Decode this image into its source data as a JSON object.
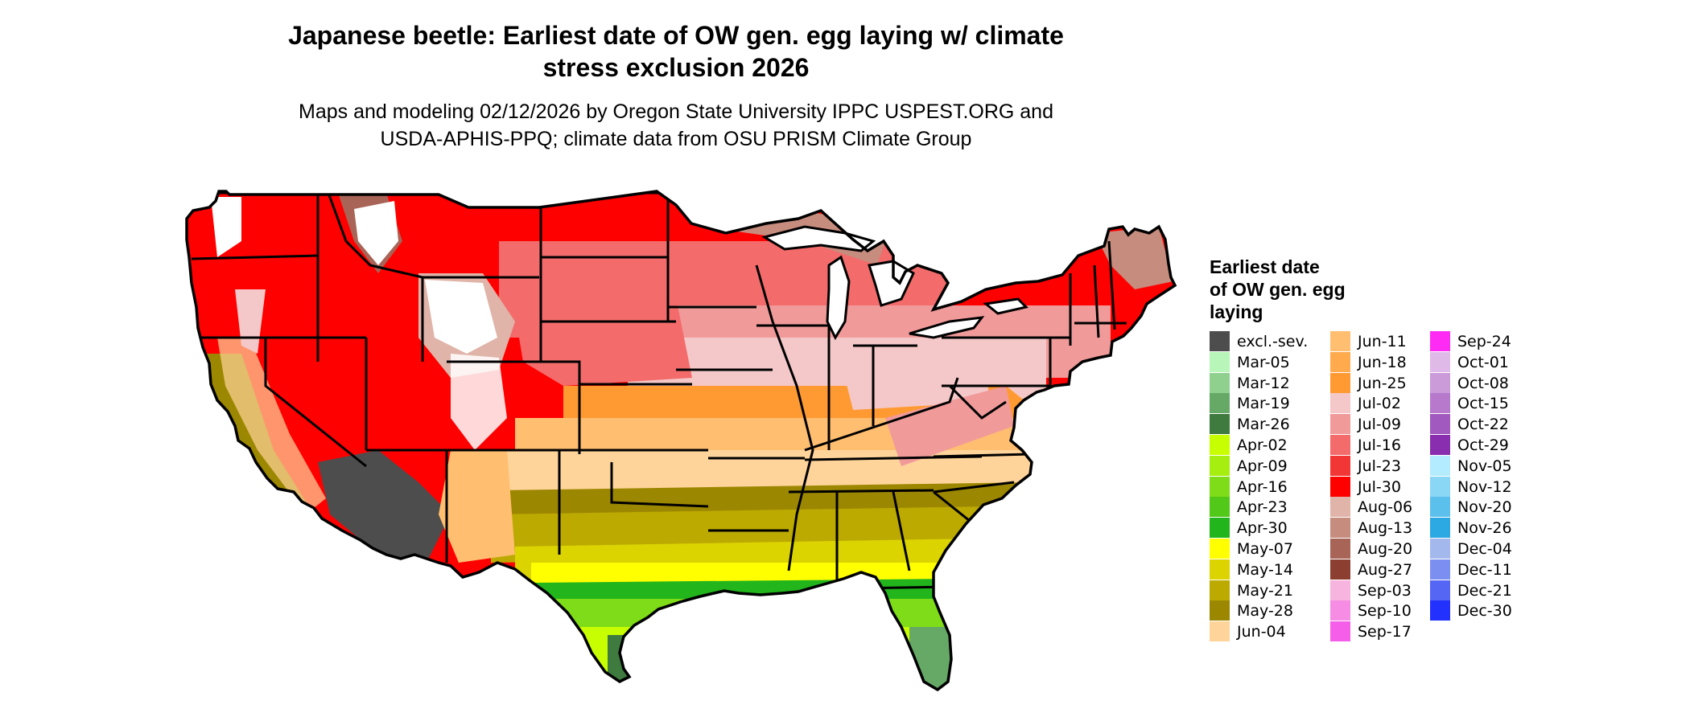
{
  "title": {
    "line1": "Japanese beetle: Earliest date of OW gen. egg laying w/ climate",
    "line2": "stress exclusion 2026"
  },
  "subtitle": {
    "line1": "Maps and modeling 02/12/2026 by Oregon State University IPPC USPEST.ORG and",
    "line2": "USDA-APHIS-PPQ; climate data from OSU PRISM Climate Group"
  },
  "legend": {
    "title_lines": [
      "Earliest date",
      "of OW gen. egg",
      "laying"
    ],
    "items": [
      {
        "label": "excl.-sev.",
        "color": "#4d4d4d"
      },
      {
        "label": "Mar-05",
        "color": "#b8f5b8"
      },
      {
        "label": "Mar-12",
        "color": "#8fd08f"
      },
      {
        "label": "Mar-19",
        "color": "#66a866"
      },
      {
        "label": "Mar-26",
        "color": "#3f7a3f"
      },
      {
        "label": "Apr-02",
        "color": "#c8ff00"
      },
      {
        "label": "Apr-09",
        "color": "#a6ee10"
      },
      {
        "label": "Apr-16",
        "color": "#7fdc18"
      },
      {
        "label": "Apr-23",
        "color": "#52c818"
      },
      {
        "label": "Apr-30",
        "color": "#22b51c"
      },
      {
        "label": "May-07",
        "color": "#ffff00"
      },
      {
        "label": "May-14",
        "color": "#dbd400"
      },
      {
        "label": "May-21",
        "color": "#bcaa00"
      },
      {
        "label": "May-28",
        "color": "#9c8700"
      },
      {
        "label": "Jun-04",
        "color": "#ffd49a"
      },
      {
        "label": "Jun-11",
        "color": "#ffbe70"
      },
      {
        "label": "Jun-18",
        "color": "#ffaa4d"
      },
      {
        "label": "Jun-25",
        "color": "#ff9a33"
      },
      {
        "label": "Jul-02",
        "color": "#f4c8c8"
      },
      {
        "label": "Jul-09",
        "color": "#f19a9a"
      },
      {
        "label": "Jul-16",
        "color": "#f46b6b"
      },
      {
        "label": "Jul-23",
        "color": "#f23636"
      },
      {
        "label": "Jul-30",
        "color": "#ff0000"
      },
      {
        "label": "Aug-06",
        "color": "#e0b4a8"
      },
      {
        "label": "Aug-13",
        "color": "#c68c7e"
      },
      {
        "label": "Aug-20",
        "color": "#a86456"
      },
      {
        "label": "Aug-27",
        "color": "#8c3f30"
      },
      {
        "label": "Sep-03",
        "color": "#f7b4de"
      },
      {
        "label": "Sep-10",
        "color": "#f78ce4"
      },
      {
        "label": "Sep-17",
        "color": "#f55ee8"
      },
      {
        "label": "Sep-24",
        "color": "#ff2bf4"
      },
      {
        "label": "Oct-01",
        "color": "#dfb9e8"
      },
      {
        "label": "Oct-08",
        "color": "#cb9ad9"
      },
      {
        "label": "Oct-15",
        "color": "#b679cc"
      },
      {
        "label": "Oct-22",
        "color": "#a159c0"
      },
      {
        "label": "Oct-29",
        "color": "#8a2eb0"
      },
      {
        "label": "Nov-05",
        "color": "#b3ecff"
      },
      {
        "label": "Nov-12",
        "color": "#8ad6f5"
      },
      {
        "label": "Nov-20",
        "color": "#5cc0ec"
      },
      {
        "label": "Nov-26",
        "color": "#2ca8e3"
      },
      {
        "label": "Dec-04",
        "color": "#a3b8ec"
      },
      {
        "label": "Dec-11",
        "color": "#7b8ff0"
      },
      {
        "label": "Dec-21",
        "color": "#5566f4"
      },
      {
        "label": "Dec-30",
        "color": "#2331ff"
      }
    ]
  },
  "map": {
    "region": "Contiguous United States",
    "colors": {
      "border": "#000000",
      "background": "#ffffff"
    }
  }
}
